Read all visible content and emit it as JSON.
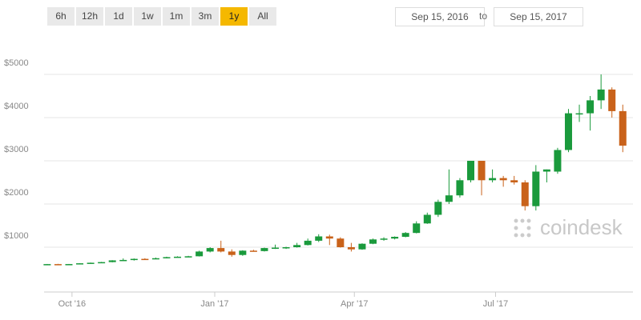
{
  "controls": {
    "ranges": [
      "6h",
      "12h",
      "1d",
      "1w",
      "1m",
      "3m",
      "1y",
      "All"
    ],
    "active": "1y",
    "from": "Sep 15, 2016",
    "separator": "to",
    "until": "Sep 15, 2017"
  },
  "watermark": "coindesk",
  "chart_data": {
    "type": "candlestick",
    "x": [
      0,
      7,
      14,
      21,
      28,
      35,
      42,
      49,
      56,
      63,
      70,
      77,
      84,
      91,
      98,
      105,
      112,
      119,
      126,
      133,
      140,
      147,
      154,
      161,
      168,
      175,
      182,
      189,
      196,
      203,
      210,
      217,
      224,
      231,
      238,
      245,
      252,
      259,
      266,
      273,
      280,
      287,
      294,
      301,
      308,
      315,
      322,
      329,
      336,
      343,
      350,
      357,
      364,
      371
    ],
    "open": [
      608,
      609,
      606,
      610,
      628,
      640,
      655,
      695,
      705,
      730,
      725,
      745,
      770,
      780,
      790,
      900,
      980,
      900,
      820,
      920,
      910,
      980,
      990,
      1000,
      1050,
      1150,
      1250,
      1200,
      1000,
      950,
      1080,
      1180,
      1200,
      1240,
      1330,
      1550,
      1750,
      2050,
      2200,
      2550,
      3000,
      2550,
      2600,
      2550,
      2500,
      1950,
      2750,
      2750,
      3250,
      4100,
      4100,
      4400,
      4650,
      4150
    ],
    "high": [
      612,
      615,
      612,
      630,
      645,
      660,
      700,
      740,
      740,
      745,
      760,
      780,
      790,
      800,
      920,
      1000,
      1150,
      950,
      930,
      940,
      990,
      1060,
      1010,
      1100,
      1200,
      1300,
      1290,
      1230,
      1100,
      1090,
      1200,
      1230,
      1250,
      1350,
      1600,
      1800,
      2100,
      2800,
      2600,
      3000,
      3000,
      2800,
      2650,
      2650,
      2550,
      2900,
      2800,
      3300,
      4200,
      4300,
      4500,
      5000,
      4700,
      4300
    ],
    "low": [
      600,
      604,
      603,
      608,
      625,
      635,
      650,
      690,
      690,
      715,
      720,
      740,
      760,
      770,
      785,
      880,
      880,
      780,
      800,
      900,
      900,
      960,
      960,
      990,
      1040,
      1120,
      1050,
      990,
      900,
      940,
      1070,
      1150,
      1180,
      1230,
      1320,
      1540,
      1700,
      2000,
      2150,
      2500,
      2200,
      2500,
      2400,
      2450,
      1850,
      1850,
      2500,
      2700,
      3200,
      3900,
      3700,
      4200,
      4000,
      3200
    ],
    "close": [
      609,
      606,
      610,
      628,
      640,
      655,
      695,
      705,
      730,
      725,
      745,
      770,
      780,
      790,
      900,
      980,
      900,
      820,
      920,
      910,
      980,
      990,
      1000,
      1050,
      1150,
      1250,
      1200,
      1000,
      950,
      1080,
      1180,
      1200,
      1240,
      1330,
      1550,
      1750,
      2050,
      2200,
      2550,
      3000,
      2550,
      2600,
      2550,
      2500,
      1950,
      2750,
      2800,
      3250,
      4100,
      4100,
      4400,
      4650,
      4150,
      3350
    ],
    "up_color": "#1a9a3c",
    "down_color": "#c9621a",
    "xlim": [
      -2,
      375
    ],
    "xticks": [
      {
        "value": 16,
        "label": "Oct '16"
      },
      {
        "value": 108,
        "label": "Jan '17"
      },
      {
        "value": 198,
        "label": "Apr '17"
      },
      {
        "value": 289,
        "label": "Jul '17"
      }
    ],
    "ylim": [
      0,
      6000
    ],
    "yticks": [
      {
        "value": 1000,
        "label": "$1000"
      },
      {
        "value": 2000,
        "label": "$2000"
      },
      {
        "value": 3000,
        "label": "$3000"
      },
      {
        "value": 4000,
        "label": "$4000"
      },
      {
        "value": 5000,
        "label": "$5000"
      }
    ],
    "grid": true
  }
}
